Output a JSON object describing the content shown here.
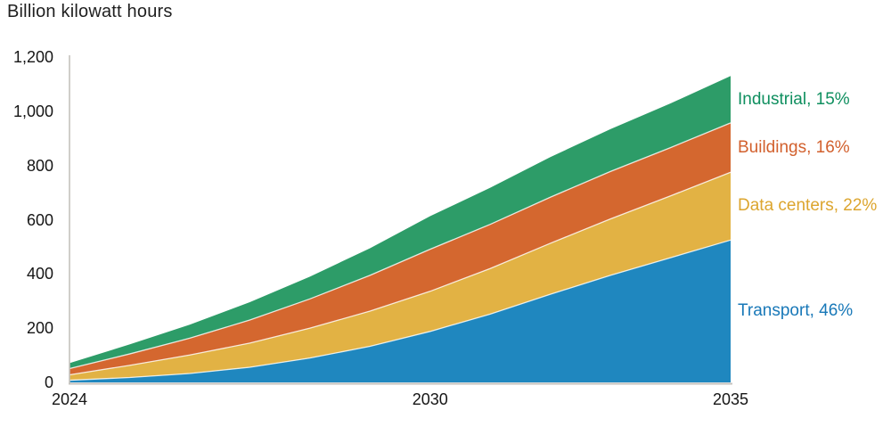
{
  "title": "Billion kilowatt hours",
  "chart_data": {
    "type": "area",
    "stacked": true,
    "title": "Billion kilowatt hours",
    "x": [
      2024,
      2025,
      2026,
      2027,
      2028,
      2029,
      2030,
      2031,
      2032,
      2033,
      2034,
      2035
    ],
    "series": [
      {
        "name": "Transport",
        "label": "Transport, 46%",
        "percent": 46,
        "fill": "#1f87bf",
        "text_color": "#1878b8",
        "values": [
          8,
          18,
          33,
          56,
          90,
          133,
          188,
          252,
          325,
          395,
          460,
          525
        ]
      },
      {
        "name": "Data centers",
        "label": "Data centers, 22%",
        "percent": 22,
        "fill": "#e2b244",
        "text_color": "#dca52e",
        "values": [
          20,
          45,
          68,
          89,
          110,
          130,
          148,
          168,
          188,
          208,
          228,
          250
        ]
      },
      {
        "name": "Buildings",
        "label": "Buildings, 16%",
        "percent": 16,
        "fill": "#d4672f",
        "text_color": "#d2602d",
        "values": [
          23,
          42,
          62,
          85,
          108,
          132,
          155,
          163,
          170,
          175,
          178,
          182
        ]
      },
      {
        "name": "Industrial",
        "label": "Industrial, 15%",
        "percent": 15,
        "fill": "#2d9c68",
        "text_color": "#0f8f5f",
        "values": [
          20,
          35,
          50,
          66,
          82,
          100,
          122,
          135,
          148,
          156,
          163,
          173
        ]
      }
    ],
    "ylim": [
      0,
      1200
    ],
    "yticks": {
      "values": [
        0,
        200,
        400,
        600,
        800,
        1000,
        1200
      ],
      "labels": [
        "0",
        "200",
        "400",
        "600",
        "800",
        "1,000",
        "1,200"
      ]
    },
    "xticks": {
      "values": [
        2024,
        2030,
        2035
      ],
      "labels": [
        "2024",
        "2030",
        "2035"
      ]
    },
    "grid": false,
    "legend_position": "right-inline"
  },
  "colors": {
    "background": "#ffffff",
    "axis": "#c4c2bd",
    "title_text": "#1f1f1f",
    "tick_text": "#151515",
    "separator": "rgba(255,255,255,0.8)"
  }
}
